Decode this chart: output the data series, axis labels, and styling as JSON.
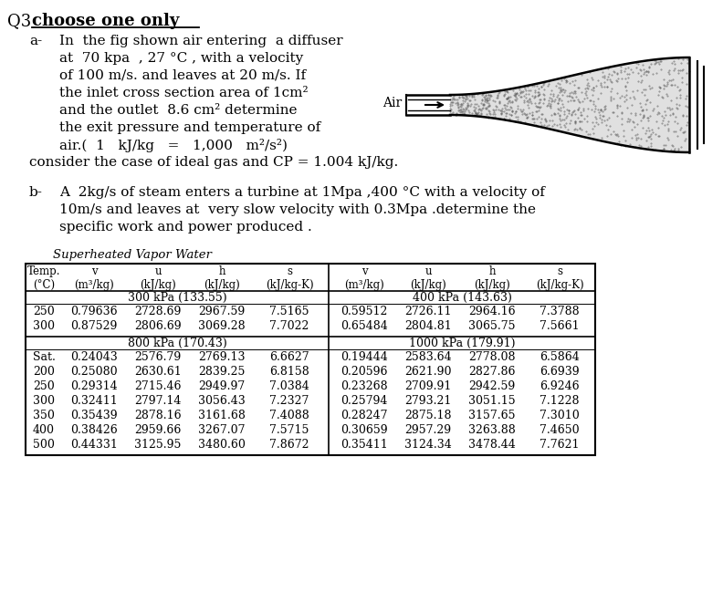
{
  "title_q3": "Q3 ",
  "title_rest": "choose one only",
  "part_a_label": "a-",
  "part_a_lines": [
    "In  the fig shown air entering  a diffuser",
    "at  70 kpa  , 27 °C , with a velocity",
    "of 100 m/s. and leaves at 20 m/s. If",
    "the inlet cross section area of 1cm²",
    "and the outlet  8.6 cm² determine",
    "the exit pressure and temperature of",
    "air.(  1   kJ/kg   =   1,000   m²/s²)"
  ],
  "part_a_last": "consider the case of ideal gas and CP = 1.004 kJ/kg.",
  "part_b_label": "b-",
  "part_b_lines": [
    "A  2kg/s of steam enters a turbine at 1Mpa ,400 °C with a velocity of",
    "10m/s and leaves at  very slow velocity with 0.3Mpa .determine the",
    "specific work and power produced ."
  ],
  "table_title": "Superheated Vapor Water",
  "pressure_left_1": "300 kPa (133.55)",
  "pressure_right_1": "400 kPa (143.63)",
  "pressure_left_2": "800 kPa (170.43)",
  "pressure_right_2": "1000 kPa (179.91)",
  "rows_300kpa": [
    [
      "250",
      "0.79636",
      "2728.69",
      "2967.59",
      "7.5165"
    ],
    [
      "300",
      "0.87529",
      "2806.69",
      "3069.28",
      "7.7022"
    ]
  ],
  "rows_400kpa": [
    [
      "0.59512",
      "2726.11",
      "2964.16",
      "7.3788"
    ],
    [
      "0.65484",
      "2804.81",
      "3065.75",
      "7.5661"
    ]
  ],
  "rows_800kpa": [
    [
      "Sat.",
      "0.24043",
      "2576.79",
      "2769.13",
      "6.6627"
    ],
    [
      "200",
      "0.25080",
      "2630.61",
      "2839.25",
      "6.8158"
    ],
    [
      "250",
      "0.29314",
      "2715.46",
      "2949.97",
      "7.0384"
    ],
    [
      "300",
      "0.32411",
      "2797.14",
      "3056.43",
      "7.2327"
    ],
    [
      "350",
      "0.35439",
      "2878.16",
      "3161.68",
      "7.4088"
    ],
    [
      "400",
      "0.38426",
      "2959.66",
      "3267.07",
      "7.5715"
    ],
    [
      "500",
      "0.44331",
      "3125.95",
      "3480.60",
      "7.8672"
    ]
  ],
  "rows_1000kpa": [
    [
      "0.19444",
      "2583.64",
      "2778.08",
      "6.5864"
    ],
    [
      "0.20596",
      "2621.90",
      "2827.86",
      "6.6939"
    ],
    [
      "0.23268",
      "2709.91",
      "2942.59",
      "6.9246"
    ],
    [
      "0.25794",
      "2793.21",
      "3051.15",
      "7.1228"
    ],
    [
      "0.28247",
      "2875.18",
      "3157.65",
      "7.3010"
    ],
    [
      "0.30659",
      "2957.29",
      "3263.88",
      "7.4650"
    ],
    [
      "0.35411",
      "3124.34",
      "3478.44",
      "7.7621"
    ]
  ],
  "bg_color": "#ffffff",
  "text_color": "#000000"
}
